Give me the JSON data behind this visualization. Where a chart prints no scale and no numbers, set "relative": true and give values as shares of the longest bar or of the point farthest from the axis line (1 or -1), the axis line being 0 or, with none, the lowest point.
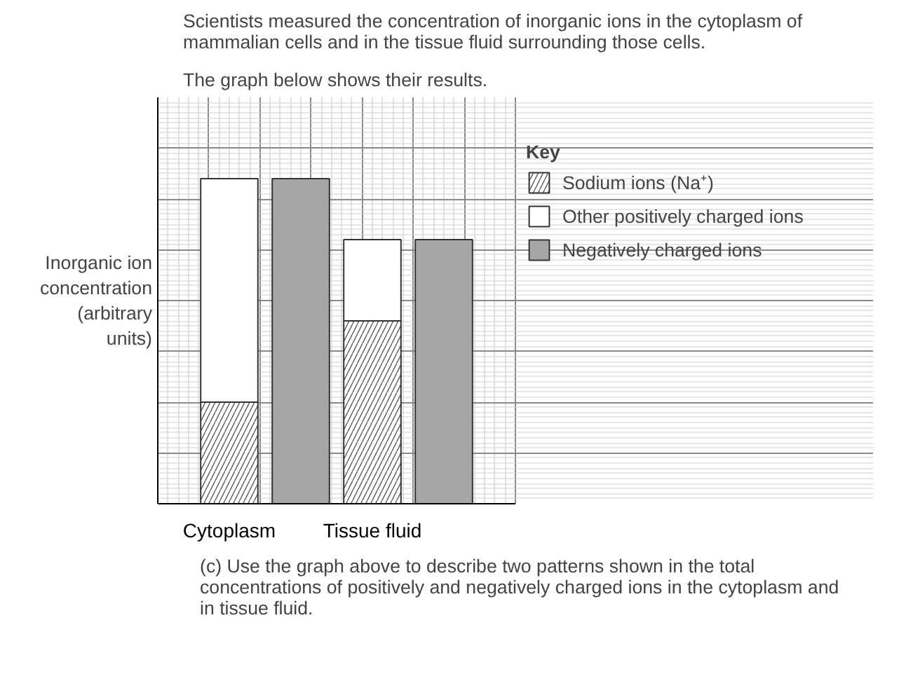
{
  "chart_data": {
    "type": "bar",
    "stacked": true,
    "relative": true,
    "annotations": [
      "Scientists measured the concentration of inorganic ions in the cytoplasm of mammalian cells and in the tissue fluid surrounding those cells.",
      "The graph below shows their results.",
      "(c)   Use the graph above to describe two patterns shown in the total concentrations of positively and negatively charged ions in the cytoplasm and in tissue fluid."
    ],
    "ylabel": "Inorganic ion concentration (arbitrary units)",
    "categories": [
      "Cytoplasm",
      null,
      "Tissue fluid",
      null
    ],
    "series": [
      {
        "name": "Sodium ions (Na⁺)",
        "color": "#ffffff",
        "values": [
          0.3125,
          null,
          0.5625,
          null
        ]
      },
      {
        "name": "Other positively charged ions",
        "color": "#ffffff",
        "values": [
          0.6875,
          null,
          0.25,
          null
        ]
      },
      {
        "name": "Negatively charged ions",
        "color": "#a6a6a6",
        "values": [
          null,
          1,
          null,
          0.8125
        ]
      }
    ],
    "legend": "right",
    "legend_title": "Key",
    "grid": true
  }
}
